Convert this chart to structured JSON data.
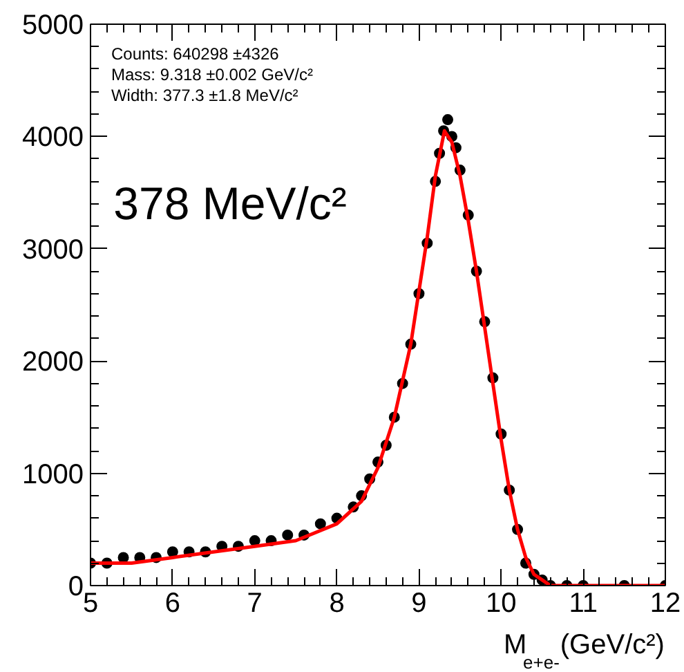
{
  "chart_data": {
    "type": "scatter",
    "xlabel": "M$_{e+e-}$ (GeV/c²)",
    "xlim": [
      5,
      12
    ],
    "ylim": [
      0,
      5000
    ],
    "xticks": [
      5,
      6,
      7,
      8,
      9,
      10,
      11,
      12
    ],
    "yticks": [
      0,
      1000,
      2000,
      3000,
      4000,
      5000
    ],
    "grid": false,
    "annotations": [
      "Counts: 640298 ±4326",
      "Mass: 9.318 ±0.002 GeV/c²",
      "Width: 377.3 ±1.8 MeV/c²",
      "378 MeV/c²"
    ],
    "series": [
      {
        "marker": "circle",
        "color": "#000000",
        "x": [
          5.0,
          5.2,
          5.4,
          5.6,
          5.8,
          6.0,
          6.2,
          6.4,
          6.6,
          6.8,
          7.0,
          7.2,
          7.4,
          7.6,
          7.8,
          8.0,
          8.2,
          8.3,
          8.4,
          8.5,
          8.6,
          8.7,
          8.8,
          8.9,
          9.0,
          9.1,
          9.2,
          9.25,
          9.3,
          9.35,
          9.4,
          9.45,
          9.5,
          9.6,
          9.7,
          9.8,
          9.9,
          10.0,
          10.1,
          10.2,
          10.3,
          10.4,
          10.5,
          10.6,
          10.8,
          11.0,
          11.5,
          12.0
        ],
        "values": [
          200,
          200,
          250,
          250,
          250,
          300,
          300,
          300,
          350,
          350,
          400,
          400,
          450,
          450,
          550,
          600,
          700,
          800,
          950,
          1100,
          1250,
          1500,
          1800,
          2150,
          2600,
          3050,
          3600,
          3850,
          4050,
          4150,
          4000,
          3900,
          3700,
          3300,
          2800,
          2350,
          1850,
          1350,
          850,
          500,
          200,
          100,
          50,
          0,
          0,
          0,
          0,
          0
        ]
      },
      {
        "type": "line",
        "color": "#ff0000",
        "x": [
          5.0,
          5.5,
          6.0,
          6.5,
          7.0,
          7.5,
          8.0,
          8.3,
          8.5,
          8.7,
          8.9,
          9.1,
          9.2,
          9.31,
          9.4,
          9.5,
          9.6,
          9.7,
          9.8,
          9.9,
          10.0,
          10.1,
          10.2,
          10.3,
          10.4,
          10.5,
          10.6,
          10.8,
          11.0,
          12.0
        ],
        "values": [
          200,
          200,
          250,
          300,
          350,
          400,
          550,
          750,
          1050,
          1500,
          2150,
          3100,
          3650,
          4050,
          3950,
          3650,
          3250,
          2800,
          2300,
          1800,
          1300,
          850,
          500,
          250,
          100,
          50,
          0,
          0,
          0,
          0
        ]
      }
    ]
  }
}
